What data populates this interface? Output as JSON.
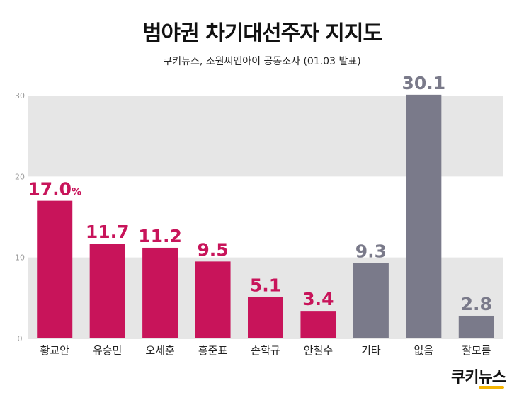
{
  "header": {
    "title": "범야권 차기대선주자 지지도",
    "subtitle": "쿠키뉴스, 조원씨앤아이 공동조사 (01.03 발표)"
  },
  "logo": {
    "text": "쿠키뉴스"
  },
  "colors": {
    "candidate": "#c8145a",
    "other": "#7a7a8a",
    "band": "#e6e6e6",
    "axis_text": "#9a9a9a"
  },
  "chart_data": {
    "type": "bar",
    "categories": [
      "황교안",
      "유승민",
      "오세훈",
      "홍준표",
      "손학규",
      "안철수",
      "기타",
      "없음",
      "잘모름"
    ],
    "values": [
      17.0,
      11.7,
      11.2,
      9.5,
      5.1,
      3.4,
      9.3,
      30.1,
      2.8
    ],
    "value_labels": [
      "17.0",
      "11.7",
      "11.2",
      "9.5",
      "5.1",
      "3.4",
      "9.3",
      "30.1",
      "2.8"
    ],
    "unit_label": "%",
    "groups": [
      "candidate",
      "candidate",
      "candidate",
      "candidate",
      "candidate",
      "candidate",
      "other",
      "other",
      "other"
    ],
    "yticks": [
      0,
      10,
      20,
      30
    ],
    "ylim": [
      0,
      30
    ],
    "grid": "alternating bands"
  }
}
